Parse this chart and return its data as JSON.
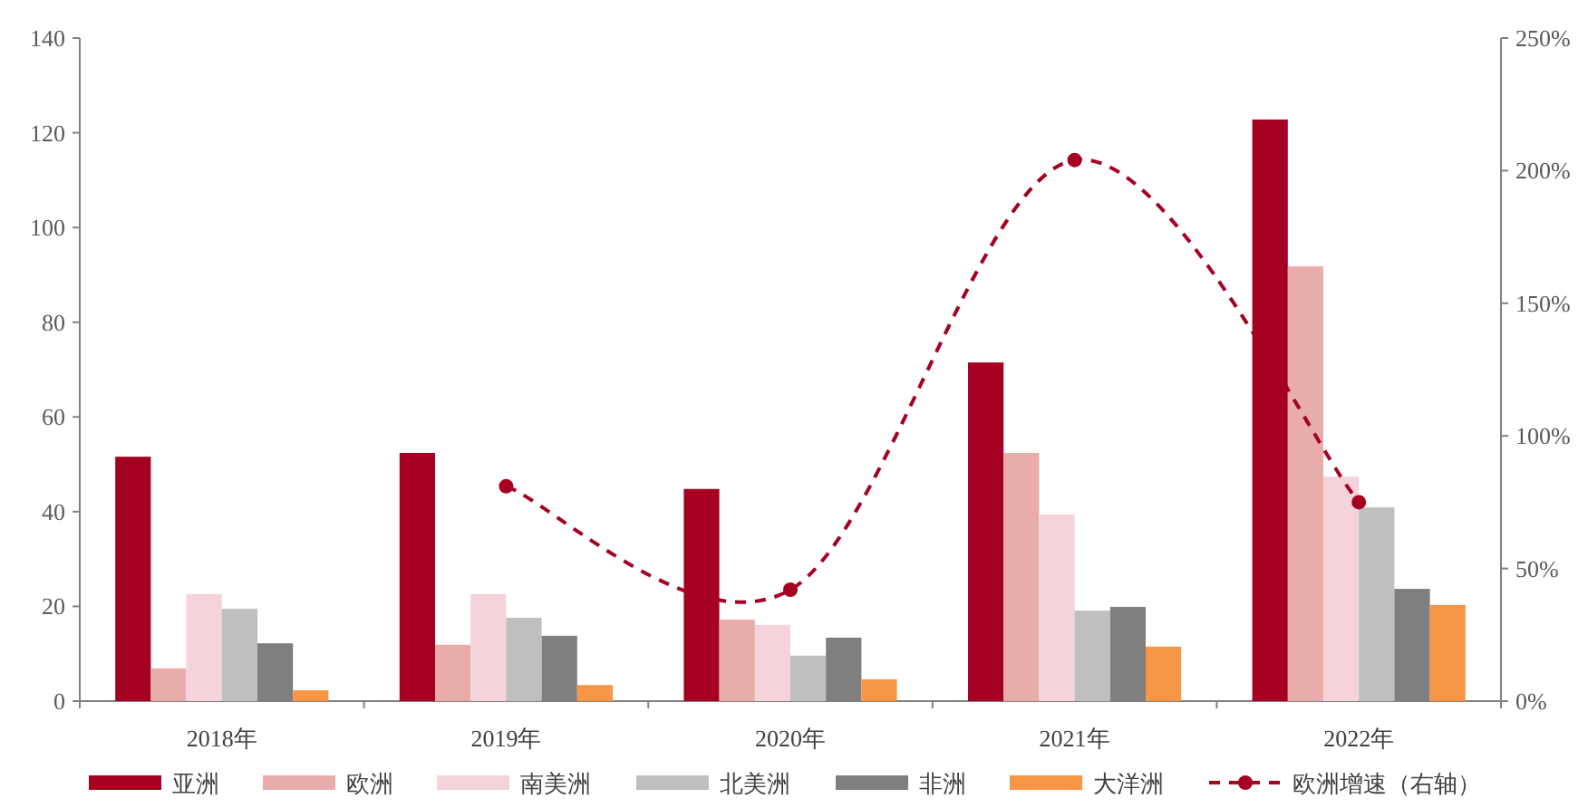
{
  "chart_data": {
    "type": "bar",
    "categories": [
      "2018年",
      "2019年",
      "2020年",
      "2021年",
      "2022年"
    ],
    "series": [
      {
        "name": "亚洲",
        "color": "#a50021",
        "values": [
          51.6,
          52.4,
          44.8,
          71.5,
          122.8
        ]
      },
      {
        "name": "欧洲",
        "color": "#e8acaa",
        "values": [
          6.9,
          11.9,
          17.2,
          52.4,
          91.8
        ]
      },
      {
        "name": "南美洲",
        "color": "#f5d3da",
        "values": [
          22.6,
          22.6,
          16.1,
          39.4,
          47.4
        ]
      },
      {
        "name": "北美洲",
        "color": "#bfbfbf",
        "values": [
          19.5,
          17.6,
          9.6,
          19.1,
          40.9
        ]
      },
      {
        "name": "非洲",
        "color": "#7f7f7f",
        "values": [
          12.2,
          13.8,
          13.4,
          19.9,
          23.7
        ]
      },
      {
        "name": "大洋洲",
        "color": "#f79646",
        "values": [
          2.3,
          3.4,
          4.6,
          11.5,
          20.3
        ]
      },
      {
        "name": "欧洲增速（右轴）",
        "color": "#a50021",
        "type": "line",
        "axis": "y2",
        "marker": "circle",
        "line_style": "dashed",
        "values": [
          null,
          81,
          42,
          204,
          75
        ]
      }
    ],
    "ylim": [
      0,
      140
    ],
    "yticks": [
      0,
      20,
      40,
      60,
      80,
      100,
      120,
      140
    ],
    "y2lim": [
      0,
      250
    ],
    "y2ticks": [
      {
        "value": 0,
        "label": "0%"
      },
      {
        "value": 50,
        "label": "50%"
      },
      {
        "value": 100,
        "label": "100%"
      },
      {
        "value": 150,
        "label": "150%"
      },
      {
        "value": 200,
        "label": "200%"
      },
      {
        "value": 250,
        "label": "250%"
      }
    ],
    "grid": false,
    "legend": "bottom"
  }
}
